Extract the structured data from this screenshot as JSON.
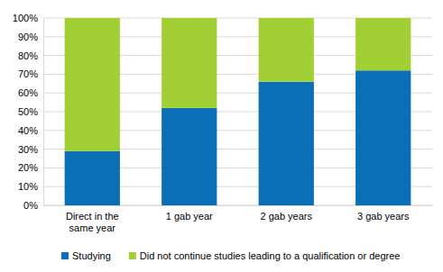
{
  "chart_data": {
    "type": "bar",
    "stacked": true,
    "grid": true,
    "legend": "bottom",
    "categories": [
      "Direct in the same year",
      "1 gab year",
      "2 gab years",
      "3 gab years"
    ],
    "series": [
      {
        "name": "Studying",
        "color": "#0a6fb4",
        "values": [
          29,
          52,
          66,
          72
        ]
      },
      {
        "name": "Did not continue studies leading to a qualification or degree",
        "color": "#a2d034",
        "values": [
          71,
          48,
          34,
          28
        ]
      }
    ],
    "ylim": [
      0,
      100
    ],
    "yticks": [
      {
        "value": 0,
        "label": "0%"
      },
      {
        "value": 10,
        "label": "10%"
      },
      {
        "value": 20,
        "label": "20%"
      },
      {
        "value": 30,
        "label": "30%"
      },
      {
        "value": 40,
        "label": "40%"
      },
      {
        "value": 50,
        "label": "50%"
      },
      {
        "value": 60,
        "label": "60%"
      },
      {
        "value": 70,
        "label": "70%"
      },
      {
        "value": 80,
        "label": "80%"
      },
      {
        "value": 90,
        "label": "90%"
      },
      {
        "value": 100,
        "label": "100%"
      }
    ]
  }
}
